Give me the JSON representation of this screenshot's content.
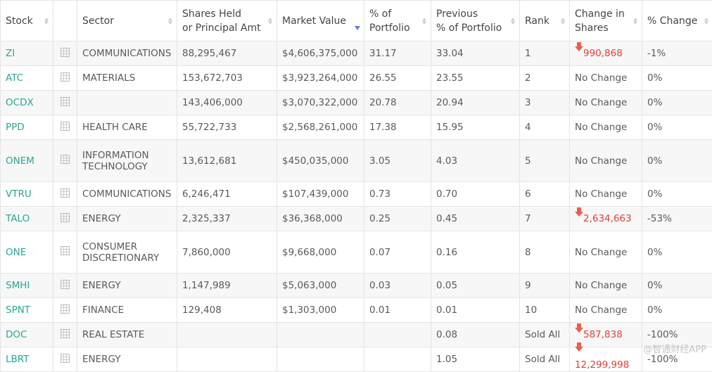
{
  "headers": {
    "stock": "Stock",
    "chart": "",
    "sector": "Sector",
    "shares": [
      "Shares Held",
      "or Principal Amt"
    ],
    "market_value": "Market Value",
    "pct_portfolio": [
      "% of",
      "Portfolio"
    ],
    "prev_pct": [
      "Previous",
      "% of Portfolio"
    ],
    "rank": "Rank",
    "change_shares": [
      "Change in",
      "Shares"
    ],
    "pct_change": "% Change"
  },
  "rows": [
    {
      "ticker": "ZI",
      "sector": "COMMUNICATIONS",
      "shares": "88,295,467",
      "value": "$4,606,375,000",
      "pct": "31.17",
      "prev": "33.04",
      "rank": "1",
      "change": "990,868",
      "change_dir": "down",
      "pct_change": "-1%"
    },
    {
      "ticker": "ATC",
      "sector": "MATERIALS",
      "shares": "153,672,703",
      "value": "$3,923,264,000",
      "pct": "26.55",
      "prev": "23.55",
      "rank": "2",
      "change": "No Change",
      "change_dir": "none",
      "pct_change": "0%"
    },
    {
      "ticker": "OCDX",
      "sector": "",
      "shares": "143,406,000",
      "value": "$3,070,322,000",
      "pct": "20.78",
      "prev": "20.94",
      "rank": "3",
      "change": "No Change",
      "change_dir": "none",
      "pct_change": "0%"
    },
    {
      "ticker": "PPD",
      "sector": "HEALTH CARE",
      "shares": "55,722,733",
      "value": "$2,568,261,000",
      "pct": "17.38",
      "prev": "15.95",
      "rank": "4",
      "change": "No Change",
      "change_dir": "none",
      "pct_change": "0%"
    },
    {
      "ticker": "ONEM",
      "sector": "INFORMATION TECHNOLOGY",
      "shares": "13,612,681",
      "value": "$450,035,000",
      "pct": "3.05",
      "prev": "4.03",
      "rank": "5",
      "change": "No Change",
      "change_dir": "none",
      "pct_change": "0%",
      "tall": true
    },
    {
      "ticker": "VTRU",
      "sector": "COMMUNICATIONS",
      "shares": "6,246,471",
      "value": "$107,439,000",
      "pct": "0.73",
      "prev": "0.70",
      "rank": "6",
      "change": "No Change",
      "change_dir": "none",
      "pct_change": "0%"
    },
    {
      "ticker": "TALO",
      "sector": "ENERGY",
      "shares": "2,325,337",
      "value": "$36,368,000",
      "pct": "0.25",
      "prev": "0.45",
      "rank": "7",
      "change": "2,634,663",
      "change_dir": "down",
      "pct_change": "-53%"
    },
    {
      "ticker": "ONE",
      "sector": "CONSUMER DISCRETIONARY",
      "shares": "7,860,000",
      "value": "$9,668,000",
      "pct": "0.07",
      "prev": "0.16",
      "rank": "8",
      "change": "No Change",
      "change_dir": "none",
      "pct_change": "0%",
      "tall": true
    },
    {
      "ticker": "SMHI",
      "sector": "ENERGY",
      "shares": "1,147,989",
      "value": "$5,063,000",
      "pct": "0.03",
      "prev": "0.05",
      "rank": "9",
      "change": "No Change",
      "change_dir": "none",
      "pct_change": "0%"
    },
    {
      "ticker": "SPNT",
      "sector": "FINANCE",
      "shares": "129,408",
      "value": "$1,303,000",
      "pct": "0.01",
      "prev": "0.01",
      "rank": "10",
      "change": "No Change",
      "change_dir": "none",
      "pct_change": "0%"
    },
    {
      "ticker": "DOC",
      "sector": "REAL ESTATE",
      "shares": "",
      "value": "",
      "pct": "",
      "prev": "0.08",
      "rank": "Sold All",
      "change": "587,838",
      "change_dir": "down",
      "pct_change": "-100%"
    },
    {
      "ticker": "LBRT",
      "sector": "ENERGY",
      "shares": "",
      "value": "",
      "pct": "",
      "prev": "1.05",
      "rank": "Sold All",
      "change": "12,299,998",
      "change_dir": "down",
      "pct_change": "-100%"
    }
  ],
  "icons": {
    "chart_cell": "grid-icon",
    "change_down": "down-arrow-icon",
    "sort": "sort-arrows-icon"
  },
  "colors": {
    "ticker": "#2aa693",
    "negative": "#e0413a",
    "sort_active": "#6a7fd6"
  },
  "sort": {
    "active_column": "Market Value",
    "direction": "descending"
  },
  "watermark": "@智通财经APP"
}
